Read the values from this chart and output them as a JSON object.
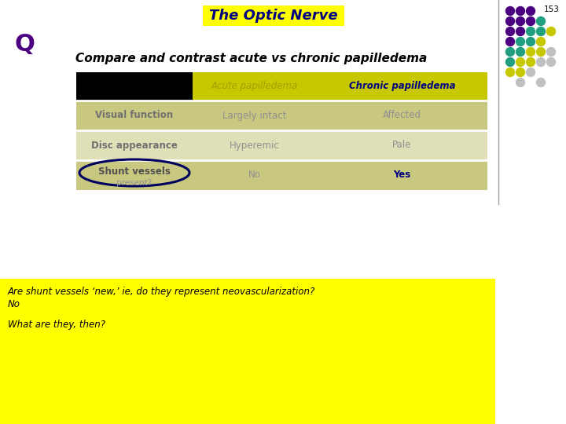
{
  "title": "The Optic Nerve",
  "page_num": "153",
  "q_label": "Q",
  "subtitle": "Compare and contrast acute vs chronic papilledema",
  "table_rows": [
    [
      "Visual function",
      "Largely intact",
      "Affected"
    ],
    [
      "Disc appearance",
      "Hyperemic",
      "Pale"
    ],
    [
      "Shunt vessels",
      "No",
      "Yes"
    ]
  ],
  "answer_line1": "Are shunt vessels ‘new,’ ie, do they represent neovascularization?",
  "answer_line2": "No",
  "answer_line3": "What are they, then?",
  "bg_color": "#ffffff",
  "title_bg": "#ffff00",
  "title_color": "#000080",
  "q_color": "#4b0082",
  "subtitle_color": "#000000",
  "answer_bg": "#ffff00",
  "answer_text_color": "#000000",
  "table_header_bg1": "#000000",
  "table_header_bg2": "#c8c800",
  "table_header_text_acute": "#a0a000",
  "table_header_text_chronic": "#000080",
  "table_row_bg_odd": "#c8c880",
  "table_row_bg_even": "#e0e0b8",
  "table_cell_text": "#909090",
  "table_label_text": "#707070",
  "shunt_circle_color": "#000060",
  "yes_color": "#000080",
  "dot_colors_grid": [
    [
      "#4b0082",
      "#4b0082",
      "#4b0082",
      null,
      null
    ],
    [
      "#4b0082",
      "#4b0082",
      "#4b0082",
      "#20a080",
      null
    ],
    [
      "#4b0082",
      "#4b0082",
      "#20a080",
      "#20a080",
      "#c8c800"
    ],
    [
      "#4b0082",
      "#20a080",
      "#20a080",
      "#c8c800",
      null
    ],
    [
      "#20a080",
      "#20a080",
      "#c8c800",
      "#c8c800",
      "#c0c0c0"
    ],
    [
      "#20a080",
      "#c8c800",
      "#c8c800",
      "#c0c0c0",
      "#c0c0c0"
    ],
    [
      "#c8c800",
      "#c8c800",
      "#c0c0c0",
      null,
      null
    ],
    [
      null,
      "#c0c0c0",
      null,
      "#c0c0c0",
      null
    ]
  ],
  "vertical_line_color": "#a0a0a0"
}
